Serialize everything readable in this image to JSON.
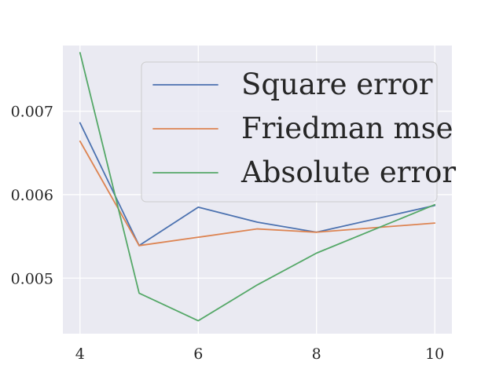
{
  "chart_data": {
    "type": "line",
    "x": [
      4,
      5,
      6,
      7,
      8,
      10
    ],
    "series": [
      {
        "name": "Square error",
        "color": "#4c72b0",
        "values": [
          0.00686,
          0.00539,
          0.00585,
          0.00567,
          0.00555,
          0.00587
        ]
      },
      {
        "name": "Friedman mse",
        "color": "#dd8452",
        "values": [
          0.00664,
          0.00539,
          0.00549,
          0.00559,
          0.00555,
          0.00566
        ]
      },
      {
        "name": "Absolute error",
        "color": "#55a868",
        "values": [
          0.0077,
          0.00482,
          0.00449,
          0.00492,
          0.0053,
          0.00588
        ]
      }
    ],
    "x_ticks": [
      "4",
      "6",
      "8",
      "10"
    ],
    "x_tick_values": [
      4,
      6,
      8,
      10
    ],
    "y_ticks": [
      "0.005",
      "0.006",
      "0.007"
    ],
    "y_tick_values": [
      0.005,
      0.006,
      0.007
    ],
    "xlim": [
      3.71,
      10.29
    ],
    "ylim": [
      0.004335,
      0.007786
    ],
    "grid": true,
    "legend": "top-right",
    "background": "#eaeaf2",
    "grid_color": "#ffffff",
    "title": "",
    "xlabel": "",
    "ylabel": ""
  }
}
